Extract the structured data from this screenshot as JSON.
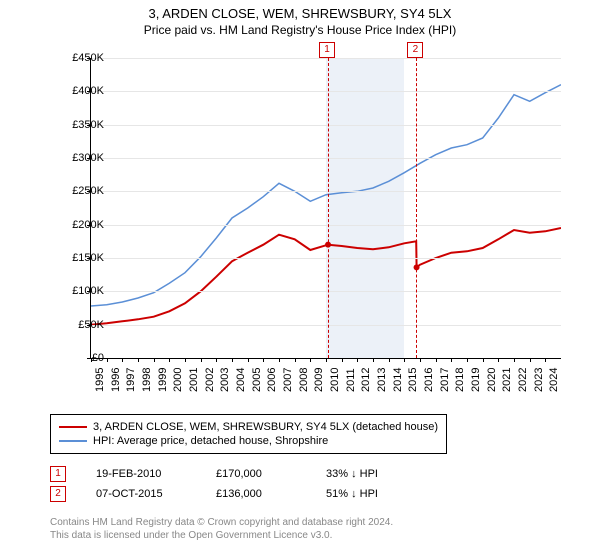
{
  "header": {
    "line1": "3, ARDEN CLOSE, WEM, SHREWSBURY, SY4 5LX",
    "line2": "Price paid vs. HM Land Registry's House Price Index (HPI)"
  },
  "chart": {
    "type": "line",
    "background_color": "#ffffff",
    "grid_color": "#e6e6e6",
    "axis_color": "#000000",
    "xlim": [
      1995,
      2025
    ],
    "ylim": [
      0,
      450000
    ],
    "y_ticks": [
      0,
      50000,
      100000,
      150000,
      200000,
      250000,
      300000,
      350000,
      400000,
      450000
    ],
    "y_tick_labels": [
      "£0",
      "£50K",
      "£100K",
      "£150K",
      "£200K",
      "£250K",
      "£300K",
      "£350K",
      "£400K",
      "£450K"
    ],
    "x_ticks": [
      1995,
      1996,
      1997,
      1998,
      1999,
      2000,
      2001,
      2002,
      2003,
      2004,
      2005,
      2006,
      2007,
      2008,
      2009,
      2010,
      2011,
      2012,
      2013,
      2014,
      2015,
      2016,
      2017,
      2018,
      2019,
      2020,
      2021,
      2022,
      2023,
      2024
    ],
    "band": {
      "start": 2010,
      "end": 2015,
      "color": "#ecf1f8"
    },
    "events": [
      {
        "x": 2010.13,
        "label": "1",
        "color": "#cc0000"
      },
      {
        "x": 2015.77,
        "label": "2",
        "color": "#cc0000"
      }
    ],
    "series": [
      {
        "name": "property",
        "color": "#cc0000",
        "width": 2,
        "points": [
          [
            1995,
            50000
          ],
          [
            1996,
            52000
          ],
          [
            1997,
            55000
          ],
          [
            1998,
            58000
          ],
          [
            1999,
            62000
          ],
          [
            2000,
            70000
          ],
          [
            2001,
            82000
          ],
          [
            2002,
            100000
          ],
          [
            2003,
            122000
          ],
          [
            2004,
            145000
          ],
          [
            2005,
            158000
          ],
          [
            2006,
            170000
          ],
          [
            2007,
            185000
          ],
          [
            2008,
            178000
          ],
          [
            2009,
            162000
          ],
          [
            2010.12,
            170000
          ],
          [
            2010.14,
            170000
          ],
          [
            2011,
            168000
          ],
          [
            2012,
            165000
          ],
          [
            2013,
            163000
          ],
          [
            2014,
            166000
          ],
          [
            2015,
            172000
          ],
          [
            2015.76,
            175000
          ],
          [
            2015.78,
            136000
          ],
          [
            2016,
            140000
          ],
          [
            2017,
            150000
          ],
          [
            2018,
            158000
          ],
          [
            2019,
            160000
          ],
          [
            2020,
            165000
          ],
          [
            2021,
            178000
          ],
          [
            2022,
            192000
          ],
          [
            2023,
            188000
          ],
          [
            2024,
            190000
          ],
          [
            2025,
            195000
          ]
        ]
      },
      {
        "name": "hpi",
        "color": "#5b8fd6",
        "width": 1.5,
        "points": [
          [
            1995,
            78000
          ],
          [
            1996,
            80000
          ],
          [
            1997,
            84000
          ],
          [
            1998,
            90000
          ],
          [
            1999,
            98000
          ],
          [
            2000,
            112000
          ],
          [
            2001,
            128000
          ],
          [
            2002,
            152000
          ],
          [
            2003,
            180000
          ],
          [
            2004,
            210000
          ],
          [
            2005,
            225000
          ],
          [
            2006,
            242000
          ],
          [
            2007,
            262000
          ],
          [
            2008,
            250000
          ],
          [
            2009,
            235000
          ],
          [
            2010,
            245000
          ],
          [
            2011,
            248000
          ],
          [
            2012,
            250000
          ],
          [
            2013,
            255000
          ],
          [
            2014,
            265000
          ],
          [
            2015,
            278000
          ],
          [
            2016,
            292000
          ],
          [
            2017,
            305000
          ],
          [
            2018,
            315000
          ],
          [
            2019,
            320000
          ],
          [
            2020,
            330000
          ],
          [
            2021,
            360000
          ],
          [
            2022,
            395000
          ],
          [
            2023,
            385000
          ],
          [
            2024,
            398000
          ],
          [
            2025,
            410000
          ]
        ]
      }
    ]
  },
  "legend": {
    "items": [
      {
        "color": "#cc0000",
        "label": "3, ARDEN CLOSE, WEM, SHREWSBURY, SY4 5LX (detached house)"
      },
      {
        "color": "#5b8fd6",
        "label": "HPI: Average price, detached house, Shropshire"
      }
    ]
  },
  "sales": {
    "rows": [
      {
        "n": "1",
        "color": "#cc0000",
        "date": "19-FEB-2010",
        "price": "£170,000",
        "delta": "33% ↓ HPI"
      },
      {
        "n": "2",
        "color": "#cc0000",
        "date": "07-OCT-2015",
        "price": "£136,000",
        "delta": "51% ↓ HPI"
      }
    ]
  },
  "footer": {
    "line1": "Contains HM Land Registry data © Crown copyright and database right 2024.",
    "line2": "This data is licensed under the Open Government Licence v3.0."
  }
}
